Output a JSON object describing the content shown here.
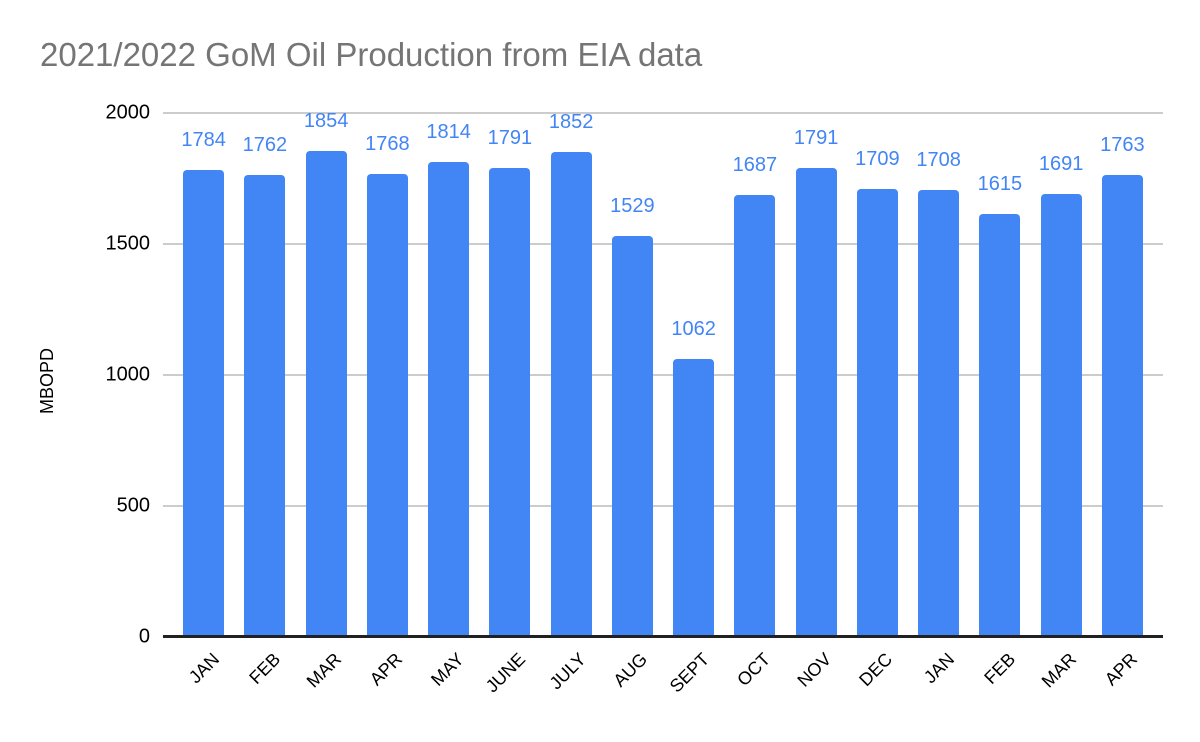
{
  "title": "2021/2022 GoM Oil Production from EIA data",
  "chart_data": {
    "type": "bar",
    "title": "2021/2022 GoM Oil Production from EIA data",
    "categories": [
      "JAN",
      "FEB",
      "MAR",
      "APR",
      "MAY",
      "JUNE",
      "JULY",
      "AUG",
      "SEPT",
      "OCT",
      "NOV",
      "DEC",
      "JAN",
      "FEB",
      "MAR",
      "APR"
    ],
    "values": [
      1784,
      1762,
      1854,
      1768,
      1814,
      1791,
      1852,
      1529,
      1062,
      1687,
      1791,
      1709,
      1708,
      1615,
      1691,
      1763
    ],
    "data_labels_shown": true,
    "xlabel": "",
    "ylabel": "MBOPD",
    "ylim": [
      0,
      2000
    ],
    "yticks": [
      0,
      500,
      1000,
      1500,
      2000
    ],
    "grid": true,
    "legend": "none",
    "colors": {
      "bar": "#4285f4",
      "data_label": "#4285f4",
      "title": "#757575",
      "axis_text": "#000000",
      "gridline": "#cccccc",
      "axis_line": "#212121",
      "background": "#ffffff"
    }
  }
}
